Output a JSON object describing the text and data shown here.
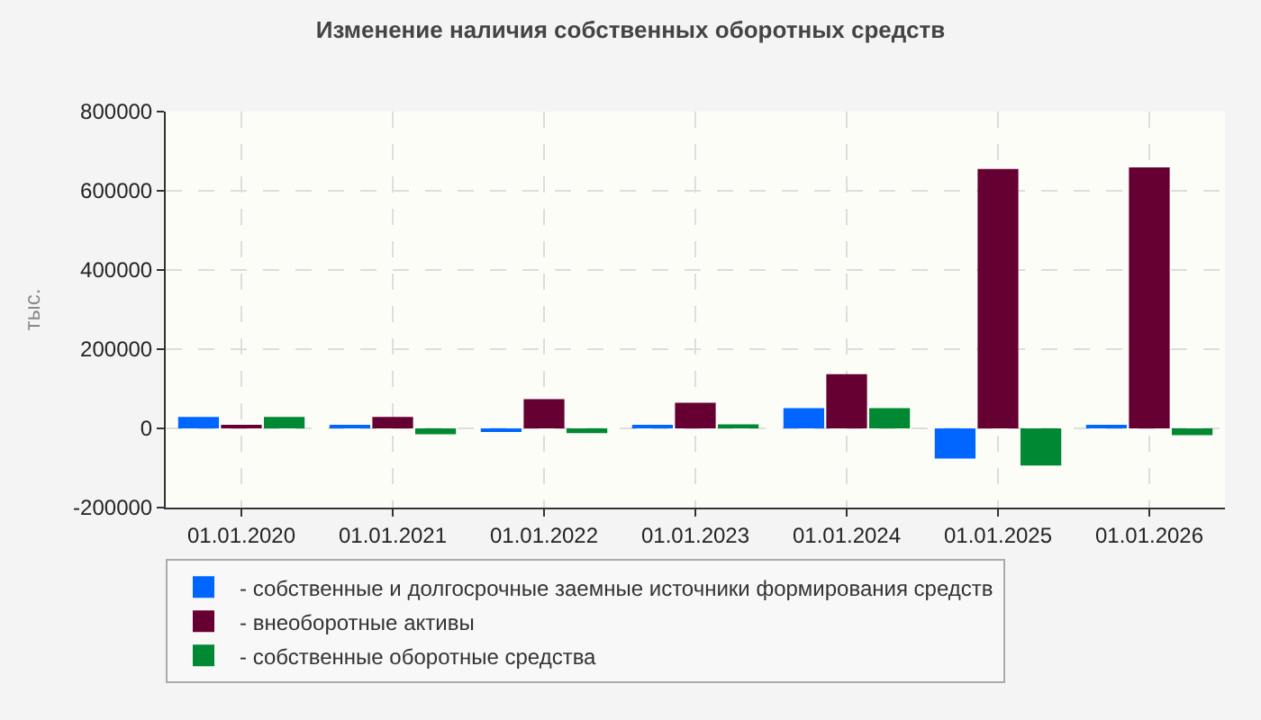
{
  "chart_data": {
    "type": "bar",
    "title": "Изменение наличия собственных оборотных средств",
    "ylabel": "тыс.",
    "categories": [
      "01.01.2020",
      "01.01.2021",
      "01.01.2022",
      "01.01.2023",
      "01.01.2024",
      "01.01.2025",
      "01.01.2026"
    ],
    "series": [
      {
        "name": "- собственные и долгосрочные заемные источники формирования средств",
        "color": "#0066ff",
        "values": [
          29000,
          6000,
          -8000,
          6000,
          51000,
          -76000,
          6000
        ]
      },
      {
        "name": "- внеоборотные активы",
        "color": "#660033",
        "values": [
          6000,
          29000,
          74000,
          65000,
          137000,
          655000,
          659000
        ]
      },
      {
        "name": "- собственные оборотные средства",
        "color": "#008833",
        "values": [
          29000,
          -15000,
          -12000,
          10000,
          51000,
          -94000,
          -17000
        ]
      }
    ],
    "ylim": [
      -200000,
      800000
    ],
    "yticks": [
      -200000,
      0,
      200000,
      400000,
      600000,
      800000
    ],
    "grid": true,
    "legend": "bottom left"
  }
}
